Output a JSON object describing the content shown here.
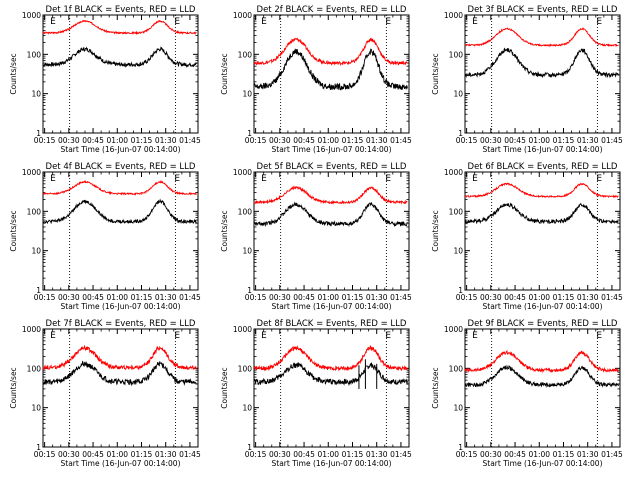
{
  "chart_data": {
    "type": "line",
    "shared": {
      "xlabel": "Start Time (16-Jun-07 00:14:00)",
      "ylabel": "Counts/sec",
      "x_tick_labels": [
        "00:15",
        "00:30",
        "00:45",
        "01:00",
        "01:15",
        "01:30",
        "01:45"
      ],
      "x_ticks_minutes": [
        15,
        30,
        45,
        60,
        75,
        90,
        105
      ],
      "xlim_minutes": [
        14,
        110
      ],
      "yscale": "log",
      "ylim": [
        1,
        1000
      ],
      "y_tick_labels": [
        "1",
        "10",
        "100",
        "1000"
      ],
      "y_tick_values": [
        1,
        10,
        100,
        1000
      ],
      "vlines_minutes": [
        30.5,
        96
      ],
      "vline_labels": [
        "E",
        "E"
      ],
      "vline_label_minutes": [
        19,
        96
      ],
      "series_colors": {
        "events": "#000000",
        "lld": "#ff0000"
      }
    },
    "panels": [
      {
        "title": "Det 1f BLACK = Events, RED = LLD",
        "events": {
          "base": 55,
          "peak": 135,
          "noise": 0.05
        },
        "lld": {
          "base": 350,
          "peak": 700,
          "noise": 0.02
        }
      },
      {
        "title": "Det 2f BLACK = Events, RED = LLD",
        "events": {
          "base": 15,
          "peak": 120,
          "noise": 0.08
        },
        "lld": {
          "base": 60,
          "peak": 240,
          "noise": 0.04
        }
      },
      {
        "title": "Det 3f BLACK = Events, RED = LLD",
        "events": {
          "base": 30,
          "peak": 130,
          "noise": 0.05
        },
        "lld": {
          "base": 170,
          "peak": 450,
          "noise": 0.02
        }
      },
      {
        "title": "Det 4f BLACK = Events, RED = LLD",
        "events": {
          "base": 55,
          "peak": 180,
          "noise": 0.04
        },
        "lld": {
          "base": 280,
          "peak": 560,
          "noise": 0.02
        }
      },
      {
        "title": "Det 5f BLACK = Events, RED = LLD",
        "events": {
          "base": 48,
          "peak": 150,
          "noise": 0.05
        },
        "lld": {
          "base": 170,
          "peak": 400,
          "noise": 0.03
        }
      },
      {
        "title": "Det 6f BLACK = Events, RED = LLD",
        "events": {
          "base": 55,
          "peak": 150,
          "noise": 0.05
        },
        "lld": {
          "base": 240,
          "peak": 500,
          "noise": 0.02
        }
      },
      {
        "title": "Det 7f BLACK = Events, RED = LLD",
        "events": {
          "base": 45,
          "peak": 130,
          "noise": 0.07
        },
        "lld": {
          "base": 105,
          "peak": 330,
          "noise": 0.05
        }
      },
      {
        "title": "Det 8f BLACK = Events, RED = LLD",
        "events": {
          "base": 45,
          "peak": 120,
          "noise": 0.07
        },
        "lld": {
          "base": 100,
          "peak": 330,
          "noise": 0.05
        },
        "spikes": [
          {
            "minute": 79,
            "low": 30,
            "high": 120
          },
          {
            "minute": 83,
            "low": 30,
            "high": 170
          },
          {
            "minute": 90,
            "low": 30,
            "high": 130
          }
        ]
      },
      {
        "title": "Det 9f BLACK = Events, RED = LLD",
        "events": {
          "base": 38,
          "peak": 105,
          "noise": 0.05
        },
        "lld": {
          "base": 90,
          "peak": 250,
          "noise": 0.04
        }
      }
    ]
  }
}
